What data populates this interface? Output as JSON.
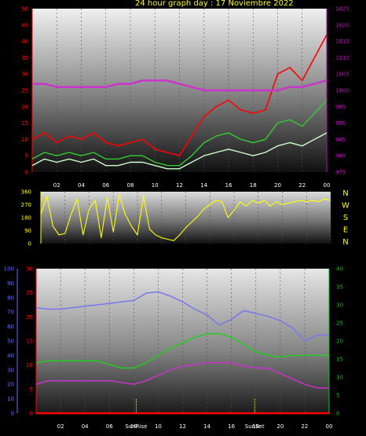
{
  "title": "24 hour graph day : 17 Noviembre 2022",
  "colors": {
    "title": "#ffff00",
    "wind_axis": "#ff0000",
    "pressure_axis": "#cc00cc",
    "dir_axis": "#ffff00",
    "compass": "#ffff00",
    "humidity_axis": "#6a6aff",
    "temp_axis": "#ff0000",
    "right_axis3": "#00cc00",
    "hour_labels": "#ffffff",
    "gust": "#ff0000",
    "wind_avg": "#33cc33",
    "wind_light": "#ccffcc",
    "pressure": "#cc33cc",
    "direction": "#ffff00",
    "humidity": "#7777ee",
    "temperature": "#22cc22",
    "dewpoint": "#cc33cc",
    "rain": "#ff0000"
  },
  "x_ticks": [
    "02",
    "04",
    "06",
    "08",
    "10",
    "12",
    "14",
    "16",
    "18",
    "20",
    "22",
    "00"
  ],
  "sunrise_label": "SunRise",
  "sunset_label": "SunSet",
  "compass": [
    "N",
    "W",
    "S",
    "E",
    "N"
  ],
  "chart_data": [
    {
      "type": "line",
      "name": "wind-pressure",
      "x_range": [
        0,
        24
      ],
      "ylim_left": [
        0,
        50
      ],
      "ylim_right": [
        975,
        1025
      ],
      "left_ticks": [
        "0",
        "5",
        "10",
        "15",
        "20",
        "25",
        "30",
        "35",
        "40",
        "45",
        "50"
      ],
      "right_ticks": [
        "975",
        "980",
        "985",
        "990",
        "995",
        "1000",
        "1005",
        "1010",
        "1015",
        "1020",
        "1025"
      ],
      "series": [
        {
          "axis": "right",
          "x": [
            0,
            1,
            2,
            3,
            4,
            5,
            6,
            7,
            8,
            9,
            10,
            11,
            12,
            13,
            14,
            15,
            16,
            17,
            18,
            19,
            20,
            21,
            22,
            23,
            24
          ],
          "values": [
            1002,
            1002,
            1001,
            1001,
            1001,
            1001,
            1001,
            1002,
            1002,
            1003,
            1003,
            1003,
            1002,
            1001,
            1000,
            1000,
            1000,
            1000,
            1000,
            1000,
            1000,
            1001,
            1001,
            1002,
            1003
          ]
        },
        {
          "axis": "left",
          "x": [
            0,
            1,
            2,
            3,
            4,
            5,
            6,
            7,
            8,
            9,
            10,
            11,
            12,
            13,
            14,
            15,
            16,
            17,
            18,
            19,
            20,
            21,
            22,
            23,
            24
          ],
          "values": [
            10,
            12,
            9,
            11,
            10,
            12,
            9,
            8,
            9,
            10,
            7,
            6,
            5,
            11,
            17,
            20,
            22,
            19,
            18,
            19,
            30,
            32,
            28,
            35,
            42
          ]
        },
        {
          "axis": "left",
          "x": [
            0,
            1,
            2,
            3,
            4,
            5,
            6,
            7,
            8,
            9,
            10,
            11,
            12,
            13,
            14,
            15,
            16,
            17,
            18,
            19,
            20,
            21,
            22,
            23,
            24
          ],
          "values": [
            4,
            6,
            5,
            6,
            5,
            6,
            4,
            4,
            5,
            5,
            3,
            2,
            2,
            5,
            9,
            11,
            12,
            10,
            9,
            10,
            15,
            16,
            14,
            18,
            22
          ]
        },
        {
          "axis": "left",
          "x": [
            0,
            1,
            2,
            3,
            4,
            5,
            6,
            7,
            8,
            9,
            10,
            11,
            12,
            13,
            14,
            15,
            16,
            17,
            18,
            19,
            20,
            21,
            22,
            23,
            24
          ],
          "values": [
            2,
            4,
            3,
            4,
            3,
            4,
            2,
            2,
            3,
            3,
            2,
            1,
            1,
            3,
            5,
            6,
            7,
            6,
            5,
            6,
            8,
            9,
            8,
            10,
            12
          ]
        }
      ]
    },
    {
      "type": "line",
      "name": "wind-direction",
      "x_range": [
        0,
        24
      ],
      "ylim": [
        0,
        360
      ],
      "left_ticks": [
        "0",
        "90",
        "180",
        "270",
        "360"
      ],
      "series": [
        {
          "x": [
            0,
            0.5,
            1,
            1.5,
            2,
            2.5,
            3,
            3.5,
            4,
            4.5,
            5,
            5.5,
            6,
            6.5,
            7,
            7.5,
            8,
            8.5,
            9,
            9.5,
            10,
            10.5,
            11,
            11.5,
            12,
            12.5,
            13,
            13.5,
            14,
            14.5,
            15,
            15.5,
            16,
            16.5,
            17,
            17.5,
            18,
            18.5,
            19,
            19.5,
            20,
            20.5,
            21,
            21.5,
            22,
            22.5,
            23,
            23.5,
            24
          ],
          "values": [
            200,
            330,
            120,
            60,
            70,
            200,
            310,
            60,
            240,
            300,
            40,
            320,
            80,
            340,
            200,
            120,
            60,
            330,
            100,
            60,
            40,
            30,
            20,
            60,
            110,
            150,
            190,
            240,
            270,
            300,
            290,
            180,
            230,
            290,
            260,
            300,
            280,
            300,
            260,
            290,
            270,
            280,
            290,
            300,
            290,
            300,
            290,
            310,
            300
          ]
        }
      ]
    },
    {
      "type": "line",
      "name": "humidity-temperature",
      "x_range": [
        0,
        24
      ],
      "ylim_left": [
        0,
        100
      ],
      "ylim_mid": [
        0,
        30
      ],
      "ylim_right": [
        0,
        40
      ],
      "left_ticks": [
        "0",
        "10",
        "20",
        "30",
        "40",
        "50",
        "60",
        "70",
        "80",
        "90",
        "100"
      ],
      "mid_ticks": [
        "0",
        "5",
        "10",
        "15",
        "20",
        "25",
        "30"
      ],
      "right_ticks": [
        "0",
        "5",
        "10",
        "15",
        "20",
        "25",
        "30",
        "35",
        "40"
      ],
      "sunrise_hour": 8.2,
      "sunset_hour": 17.9,
      "series": [
        {
          "axis": "left",
          "x": [
            0,
            1,
            2,
            3,
            4,
            5,
            6,
            7,
            8,
            9,
            10,
            11,
            12,
            13,
            14,
            15,
            16,
            17,
            18,
            19,
            20,
            21,
            22,
            23,
            24
          ],
          "values": [
            73,
            72,
            72,
            73,
            74,
            75,
            76,
            77,
            78,
            83,
            84,
            81,
            77,
            72,
            68,
            61,
            65,
            71,
            69,
            67,
            64,
            59,
            50,
            54,
            54
          ]
        },
        {
          "axis": "right",
          "x": [
            0,
            1,
            2,
            3,
            4,
            5,
            6,
            7,
            8,
            9,
            10,
            11,
            12,
            13,
            14,
            15,
            16,
            17,
            18,
            19,
            20,
            21,
            22,
            23,
            24
          ],
          "values": [
            14,
            14.5,
            14.5,
            14.5,
            14.5,
            14.5,
            13.5,
            12.5,
            12.5,
            14,
            16,
            18,
            19.5,
            21,
            22,
            22,
            21,
            19,
            17,
            16,
            15.5,
            16,
            16,
            16,
            16
          ]
        },
        {
          "axis": "right",
          "x": [
            0,
            1,
            2,
            3,
            4,
            5,
            6,
            7,
            8,
            9,
            10,
            11,
            12,
            13,
            14,
            15,
            16,
            17,
            18,
            19,
            20,
            21,
            22,
            23,
            24
          ],
          "values": [
            8,
            9,
            9,
            9,
            9,
            9,
            9,
            8.5,
            8,
            9,
            10.5,
            12,
            13,
            13.5,
            14,
            14,
            14,
            13,
            12.5,
            12.5,
            11,
            9.5,
            8,
            7,
            7
          ]
        },
        {
          "axis": "mid",
          "x": [
            0,
            24
          ],
          "values": [
            0,
            0
          ]
        }
      ]
    }
  ]
}
